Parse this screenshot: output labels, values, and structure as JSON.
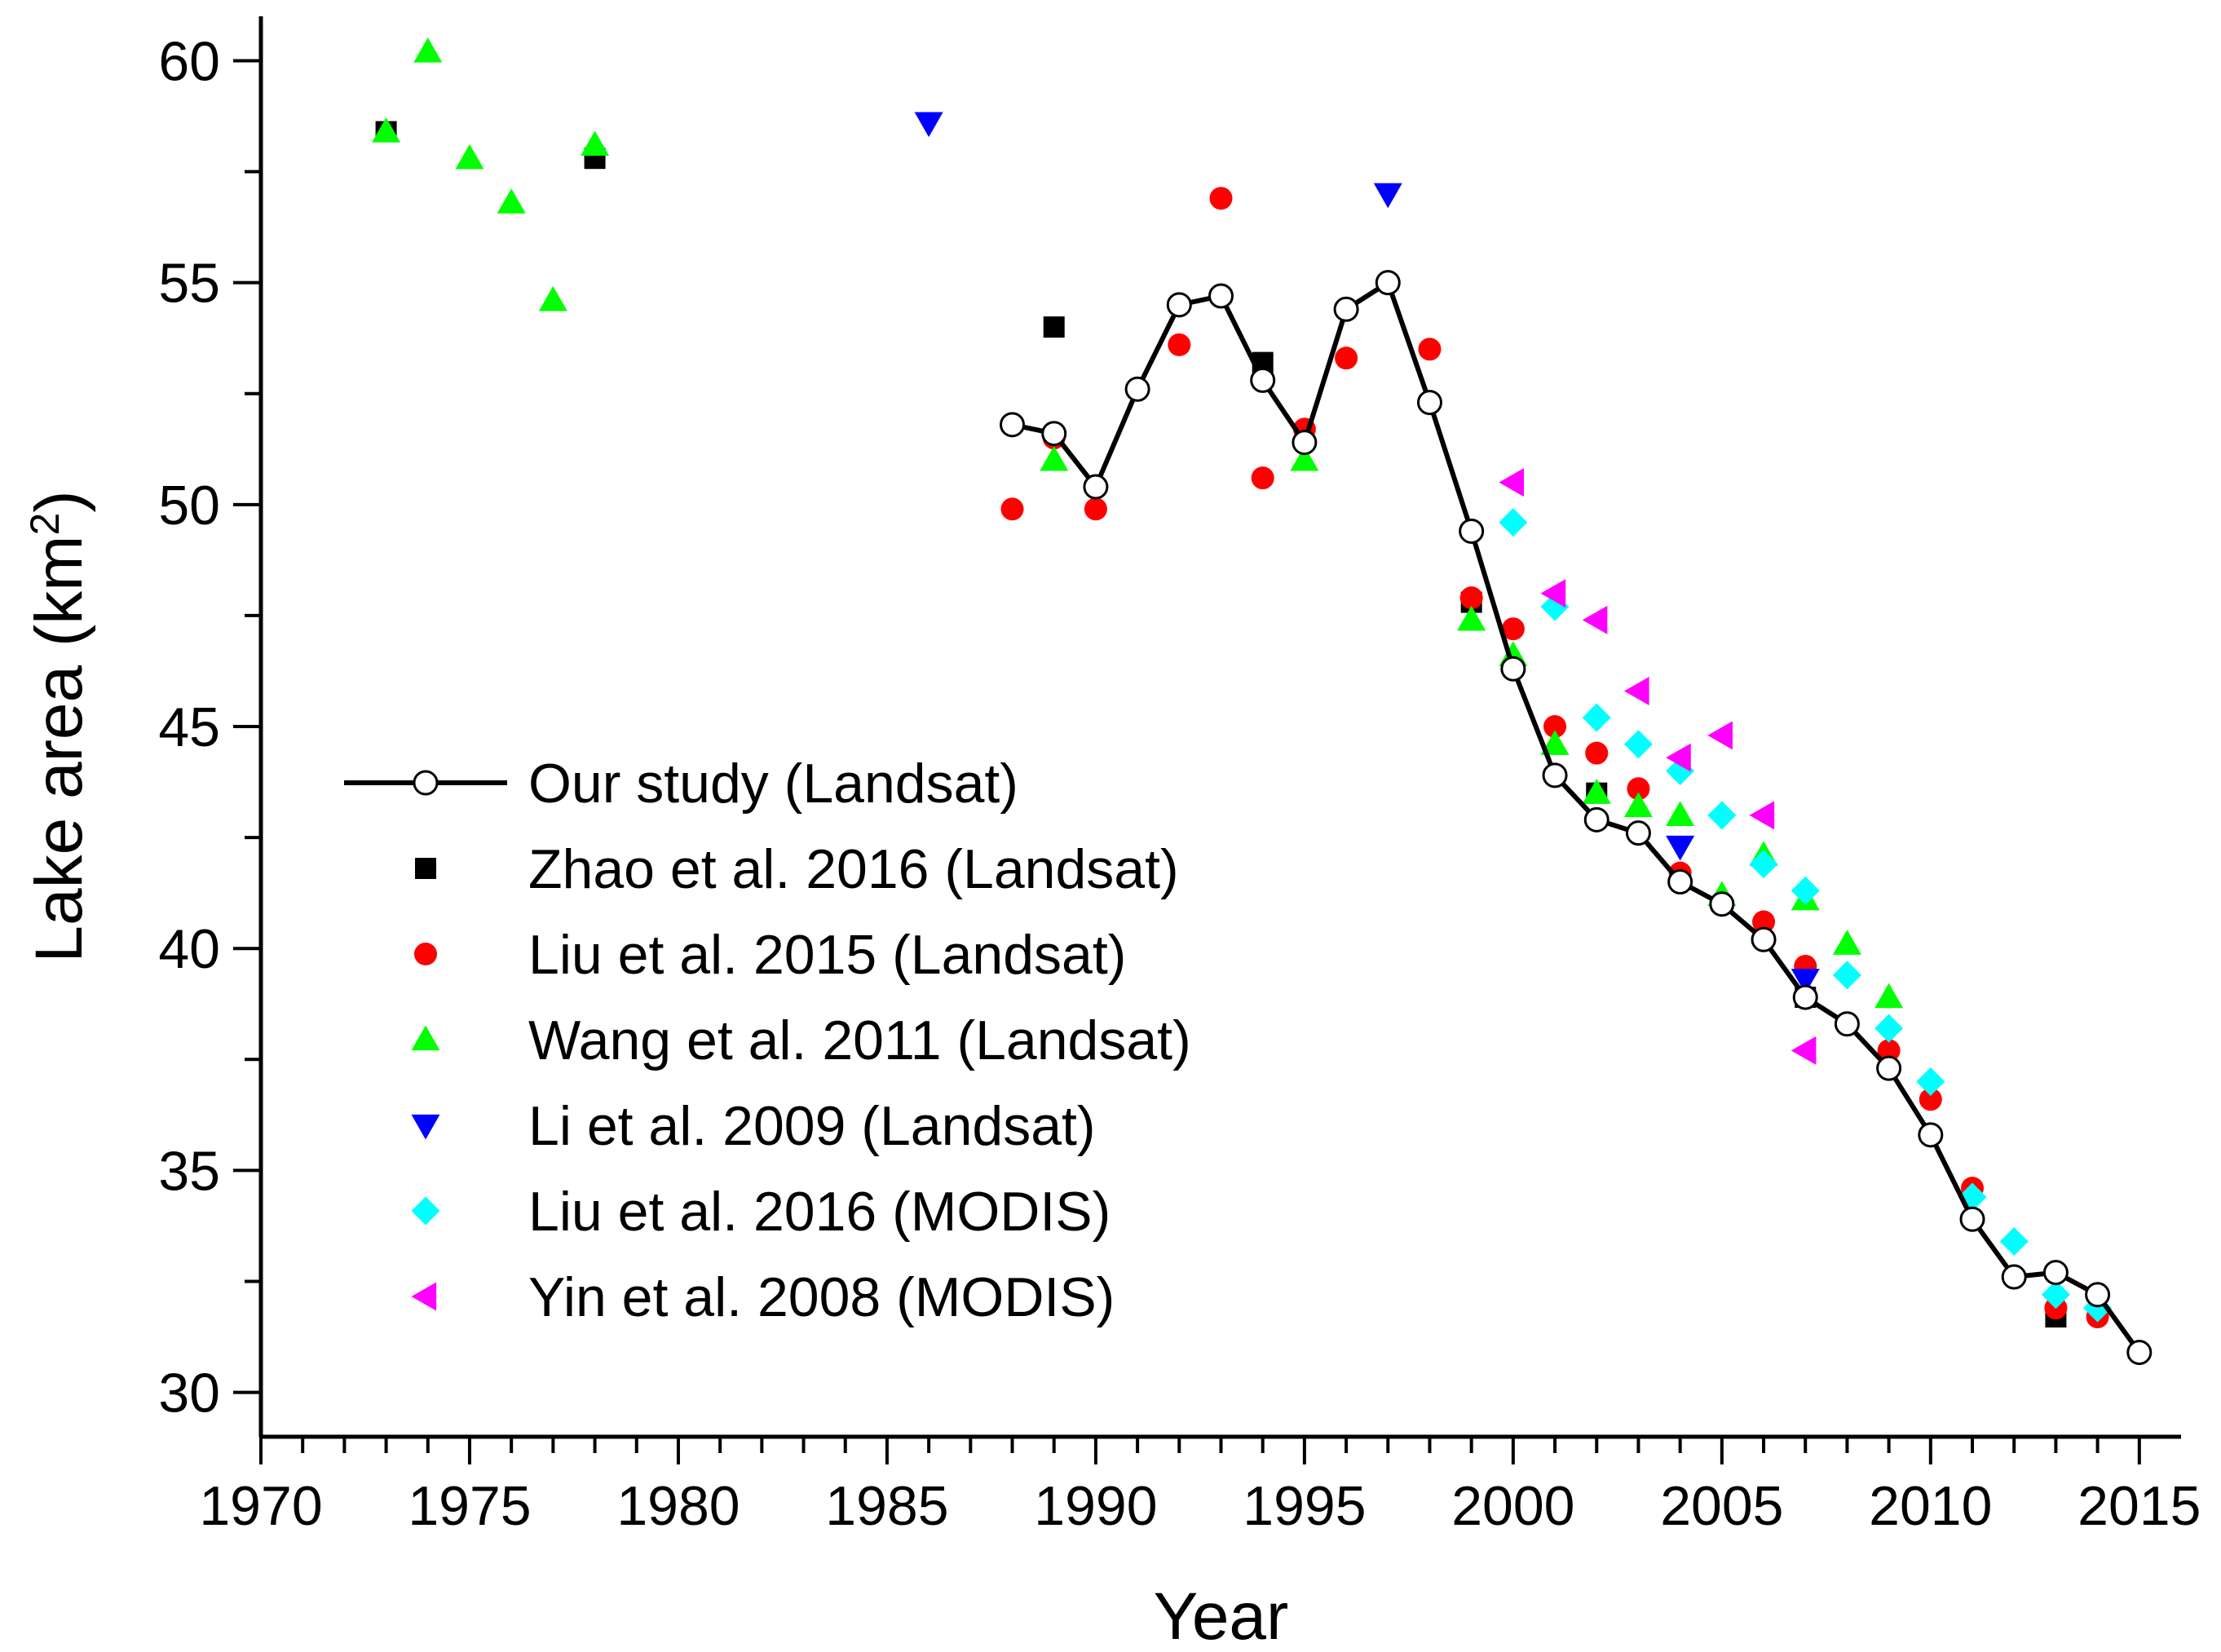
{
  "chart_data": {
    "type": "scatter",
    "title": "",
    "xlabel": "Year",
    "ylabel": "Lake area (km",
    "ylabel_sup": "2",
    "ylabel_close": ")",
    "xlim": [
      1970,
      2016
    ],
    "ylim": [
      29,
      61
    ],
    "xticks": [
      1970,
      1975,
      1980,
      1985,
      1990,
      1995,
      2000,
      2005,
      2010,
      2015
    ],
    "yticks": [
      30,
      35,
      40,
      45,
      50,
      55,
      60
    ],
    "legend_position": "lower-left",
    "series": [
      {
        "name": "Our study (Landsat)",
        "marker": "circle-open",
        "line": true,
        "color": "#000000",
        "x": [
          1988,
          1989,
          1990,
          1991,
          1992,
          1993,
          1994,
          1995,
          1996,
          1997,
          1998,
          1999,
          2000,
          2001,
          2002,
          2003,
          2004,
          2005,
          2006,
          2007,
          2008,
          2009,
          2010,
          2011,
          2012,
          2013,
          2014,
          2015
        ],
        "y": [
          51.8,
          51.6,
          50.4,
          52.6,
          54.5,
          54.7,
          52.8,
          51.4,
          54.4,
          55.0,
          52.3,
          49.4,
          46.3,
          43.9,
          42.9,
          42.6,
          41.5,
          41.0,
          40.2,
          38.9,
          38.3,
          37.3,
          35.8,
          33.9,
          32.6,
          32.7,
          32.2,
          30.9
        ]
      },
      {
        "name": "Zhao et al. 2016 (Landsat)",
        "marker": "square",
        "line": false,
        "color": "#000000",
        "x": [
          1973,
          1978,
          1989,
          1994,
          1999,
          2002,
          2007,
          2013
        ],
        "y": [
          58.4,
          57.8,
          54.0,
          53.2,
          47.8,
          43.5,
          38.9,
          31.7
        ]
      },
      {
        "name": "Liu et al. 2015 (Landsat)",
        "marker": "circle",
        "line": false,
        "color": "#ff0000",
        "x": [
          1988,
          1989,
          1990,
          1992,
          1993,
          1994,
          1995,
          1996,
          1998,
          1999,
          2000,
          2001,
          2002,
          2003,
          2004,
          2006,
          2007,
          2009,
          2010,
          2011,
          2013,
          2014
        ],
        "y": [
          49.9,
          51.5,
          49.9,
          53.6,
          56.9,
          50.6,
          51.7,
          53.3,
          53.5,
          47.9,
          47.2,
          45.0,
          44.4,
          43.6,
          41.7,
          40.6,
          39.6,
          37.7,
          36.6,
          34.6,
          31.9,
          31.7
        ]
      },
      {
        "name": "Wang et al. 2011 (Landsat)",
        "marker": "triangle-up",
        "line": false,
        "color": "#00ff00",
        "x": [
          1973,
          1974,
          1975,
          1976,
          1977,
          1978,
          1989,
          1995,
          1999,
          2000,
          2001,
          2002,
          2003,
          2004,
          2005,
          2006,
          2007,
          2008,
          2009
        ],
        "y": [
          58.4,
          60.2,
          57.8,
          56.8,
          54.6,
          58.1,
          51.0,
          51.0,
          47.4,
          46.6,
          44.6,
          43.5,
          43.2,
          43.0,
          41.2,
          42.1,
          41.1,
          40.1,
          38.9
        ]
      },
      {
        "name": "Li et al. 2009 (Landsat)",
        "marker": "triangle-down",
        "line": false,
        "color": "#0000ff",
        "x": [
          1986,
          1997,
          2004,
          2007
        ],
        "y": [
          58.6,
          57.0,
          42.3,
          39.3
        ]
      },
      {
        "name": "Liu et al. 2016 (MODIS)",
        "marker": "diamond",
        "line": false,
        "color": "#00ffff",
        "x": [
          2000,
          2001,
          2002,
          2003,
          2004,
          2005,
          2006,
          2007,
          2008,
          2009,
          2010,
          2011,
          2012,
          2013,
          2014
        ],
        "y": [
          49.6,
          47.7,
          45.2,
          44.6,
          44.0,
          43.0,
          41.9,
          41.3,
          39.4,
          38.2,
          37.0,
          34.4,
          33.4,
          32.2,
          31.9
        ]
      },
      {
        "name": "Yin et al. 2008 (MODIS)",
        "marker": "triangle-left",
        "line": false,
        "color": "#ff00ff",
        "x": [
          2000,
          2001,
          2002,
          2003,
          2004,
          2005,
          2006,
          2007
        ],
        "y": [
          50.5,
          48.0,
          47.4,
          45.8,
          44.3,
          44.8,
          43.0,
          37.7
        ]
      }
    ]
  }
}
